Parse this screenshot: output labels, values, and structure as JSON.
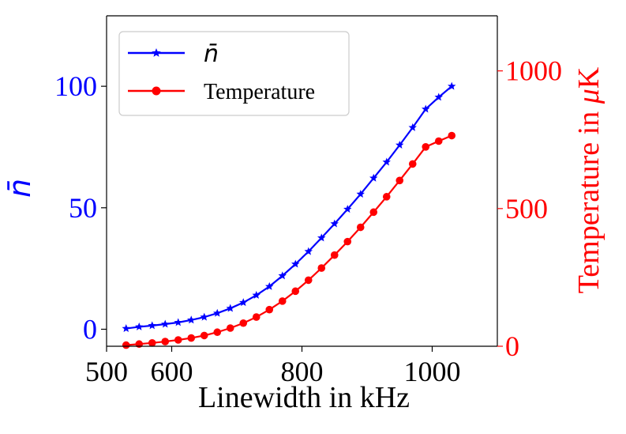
{
  "chart_data": {
    "type": "line",
    "xlabel": "Linewidth in kHz",
    "ylabel_left": "n̄",
    "ylabel_right_prefix": "Temperature in ",
    "ylabel_right_mu": "μ",
    "ylabel_right_unit": "K",
    "xlim": [
      500,
      1100
    ],
    "ylim_left": [
      -7,
      129
    ],
    "ylim_right": [
      0,
      1200
    ],
    "x_ticks": [
      500,
      600,
      800,
      1000
    ],
    "y_left_ticks": [
      0,
      50,
      100
    ],
    "y_right_ticks": [
      0,
      500,
      1000
    ],
    "grid": false,
    "legend_position": "top-left",
    "colors": {
      "n_bar": "#0000ff",
      "temperature": "#ff0000",
      "axes": "#000000"
    },
    "series": [
      {
        "name": "n̄",
        "axis": "left",
        "marker": "star",
        "x": [
          530,
          550,
          570,
          590,
          610,
          630,
          650,
          670,
          690,
          710,
          730,
          750,
          770,
          790,
          810,
          830,
          850,
          870,
          890,
          910,
          930,
          950,
          970,
          990,
          1010,
          1030
        ],
        "values": [
          0.3,
          1.0,
          1.5,
          2.1,
          2.8,
          3.8,
          5.0,
          6.6,
          8.6,
          11.0,
          14.0,
          17.6,
          22.0,
          26.8,
          32.0,
          37.6,
          43.4,
          49.4,
          55.6,
          62.2,
          68.8,
          75.8,
          83.0,
          90.6,
          95.5,
          100.0
        ]
      },
      {
        "name": "Temperature",
        "axis": "right",
        "marker": "circle",
        "x": [
          530,
          550,
          570,
          590,
          610,
          630,
          650,
          670,
          690,
          710,
          730,
          750,
          770,
          790,
          810,
          830,
          850,
          870,
          890,
          910,
          930,
          950,
          970,
          990,
          1010,
          1030
        ],
        "values": [
          4,
          8,
          12,
          17,
          23,
          30,
          39,
          51,
          66,
          84,
          106,
          133,
          164,
          200,
          240,
          284,
          331,
          380,
          432,
          487,
          543,
          602,
          662,
          724,
          745,
          765
        ]
      }
    ]
  }
}
